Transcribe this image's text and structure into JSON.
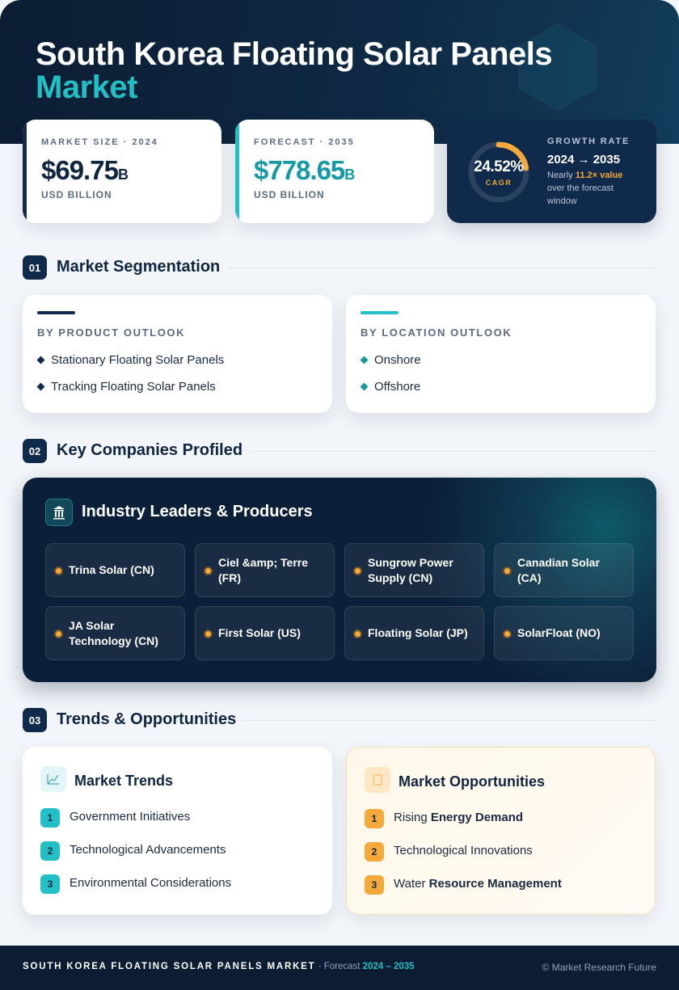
{
  "header": {
    "title_line1": "South Korea Floating Solar Panels",
    "title_line2": "Market"
  },
  "stats": {
    "market_size": {
      "label": "MARKET SIZE · 2024",
      "value": "$69.75",
      "unit": "B",
      "sub": "USD BILLION"
    },
    "forecast": {
      "label": "FORECAST · 2035",
      "value": "$778.65",
      "unit": "B",
      "sub": "USD BILLION"
    },
    "growth": {
      "cagr": "24.52%",
      "cagr_label": "CAGR",
      "label": "GROWTH RATE",
      "period": "2024 → 2035",
      "note_prefix": "Nearly",
      "note_highlight": "11.2× value",
      "note_suffix": "over the forecast window"
    }
  },
  "segmentation": {
    "number": "01",
    "title": "Market Segmentation",
    "product": {
      "heading": "BY PRODUCT OUTLOOK",
      "items": [
        "Stationary Floating Solar Panels",
        "Tracking Floating Solar Panels"
      ]
    },
    "location": {
      "heading": "BY LOCATION OUTLOOK",
      "items": [
        "Onshore",
        "Offshore"
      ]
    }
  },
  "companies": {
    "number": "02",
    "title": "Key Companies Profiled",
    "panel_title": "Industry Leaders & Producers",
    "items": [
      "Trina Solar (CN)",
      "Ciel &amp; Terre (FR)",
      "Sungrow Power Supply (CN)",
      "Canadian Solar (CA)",
      "JA Solar Technology (CN)",
      "First Solar (US)",
      "Floating Solar (JP)",
      "SolarFloat (NO)"
    ]
  },
  "trends": {
    "number": "03",
    "title": "Trends & Opportunities",
    "market_trends": {
      "title": "Market Trends",
      "items": [
        {
          "number": "1",
          "text": "Government Initiatives"
        },
        {
          "number": "2",
          "text": "Technological Advancements"
        },
        {
          "number": "3",
          "text": "Environmental Considerations"
        }
      ]
    },
    "opportunities": {
      "title": "Market Opportunities",
      "items": [
        {
          "number": "1",
          "text": "Rising",
          "bold": "Energy Demand"
        },
        {
          "number": "2",
          "text": "Technological Innovations"
        },
        {
          "number": "3",
          "text": "Water",
          "bold": "Resource Management"
        }
      ]
    }
  },
  "footer": {
    "title": "SOUTH KOREA FLOATING SOLAR PANELS MARKET",
    "forecast_label": "· Forecast",
    "forecast_years": "2024 – 2035",
    "copyright": "© Market Research Future"
  }
}
